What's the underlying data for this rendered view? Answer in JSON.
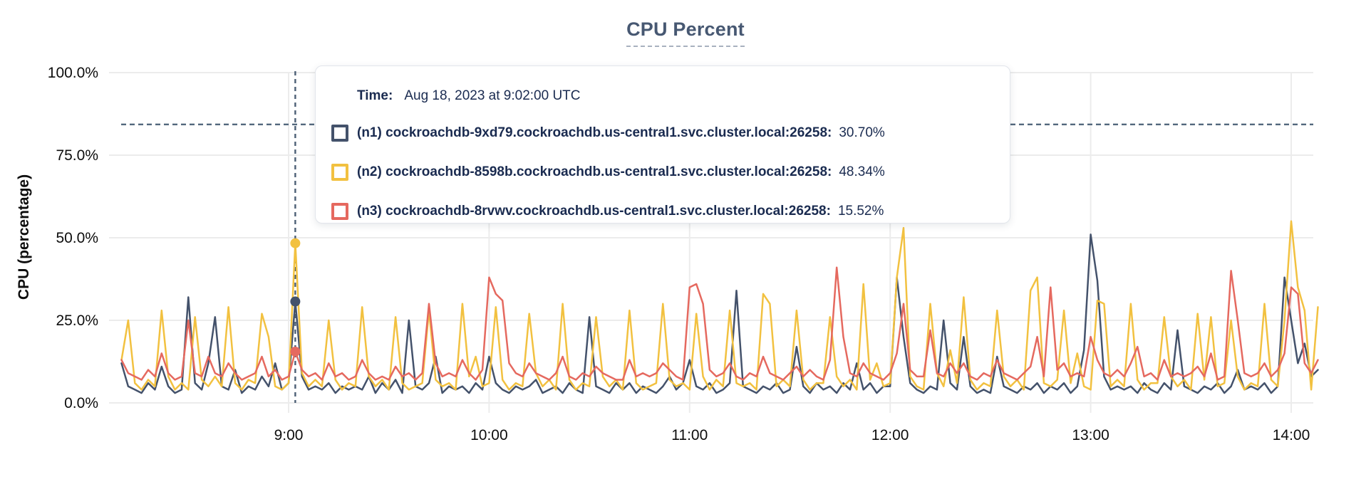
{
  "header": {
    "title": "CPU Percent"
  },
  "colors": {
    "series_n1": "#44526b",
    "series_n2": "#f2c140",
    "series_n3": "#e5695f",
    "title_text": "#475872",
    "tooltip_text": "#1a2b50",
    "gridline": "#ececec",
    "threshold_line": "#53687d",
    "crosshair_line": "#4c5f75",
    "tick_text": "#0d0d0d"
  },
  "tooltip": {
    "time_label": "Time:",
    "time_value": "Aug 18, 2023 at 9:02:00 UTC",
    "rows": [
      {
        "label": "(n1) cockroachdb-9xd79.cockroachdb.us-central1.svc.cluster.local:26258:",
        "value": "30.70%",
        "color": "#44526b"
      },
      {
        "label": "(n2) cockroachdb-8598b.cockroachdb.us-central1.svc.cluster.local:26258:",
        "value": "48.34%",
        "color": "#f2c140"
      },
      {
        "label": "(n3) cockroachdb-8rvwv.cockroachdb.us-central1.svc.cluster.local:26258:",
        "value": "15.52%",
        "color": "#e5695f"
      }
    ]
  },
  "chart_data": {
    "type": "line",
    "title": "CPU Percent",
    "xlabel": "",
    "ylabel": "CPU (percentage)",
    "ylim": [
      0,
      100
    ],
    "grid": true,
    "y_ticks": [
      {
        "value": 0,
        "label": "0.0%"
      },
      {
        "value": 25,
        "label": "25.0%"
      },
      {
        "value": 50,
        "label": "50.0%"
      },
      {
        "value": 75,
        "label": "75.0%"
      },
      {
        "value": 100,
        "label": "100.0%"
      }
    ],
    "x_ticks": [
      {
        "minute": 540,
        "label": "9:00"
      },
      {
        "minute": 600,
        "label": "10:00"
      },
      {
        "minute": 660,
        "label": "11:00"
      },
      {
        "minute": 720,
        "label": "12:00"
      },
      {
        "minute": 780,
        "label": "13:00"
      },
      {
        "minute": 840,
        "label": "14:00"
      }
    ],
    "x_start_minute": 490,
    "x_step_minutes": 2,
    "threshold_percent": 84.3,
    "crosshair": {
      "minute": 542,
      "time_text": "Aug 18, 2023 at 9:02:00 UTC",
      "values": {
        "n1": 30.7,
        "n2": 48.34,
        "n3": 15.52
      }
    },
    "series": [
      {
        "name": "(n1) cockroachdb-9xd79.cockroachdb.us-central1.svc.cluster.local:26258",
        "color": "#44526b",
        "crosshair_value": 30.7,
        "values": [
          12,
          5,
          4,
          3,
          6,
          4,
          11,
          5,
          3,
          4,
          32,
          6,
          4,
          12,
          26,
          5,
          4,
          10,
          3,
          5,
          4,
          8,
          5,
          12,
          4,
          6,
          30.7,
          8,
          4,
          5,
          4,
          6,
          3,
          5,
          4,
          5,
          4,
          8,
          3,
          6,
          4,
          7,
          3,
          25,
          5,
          4,
          6,
          14,
          3,
          5,
          4,
          5,
          3,
          6,
          4,
          14,
          6,
          4,
          3,
          5,
          4,
          5,
          7,
          3,
          4,
          5,
          3,
          6,
          4,
          3,
          26,
          5,
          4,
          3,
          6,
          4,
          6,
          3,
          5,
          4,
          3,
          5,
          8,
          4,
          6,
          13,
          5,
          4,
          6,
          3,
          4,
          6,
          34,
          5,
          4,
          3,
          5,
          4,
          6,
          3,
          4,
          17,
          5,
          3,
          6,
          4,
          5,
          3,
          6,
          4,
          12,
          4,
          6,
          3,
          5,
          5,
          38,
          20,
          6,
          4,
          3,
          5,
          4,
          25,
          6,
          4,
          20,
          5,
          3,
          4,
          3,
          14,
          5,
          4,
          3,
          5,
          4,
          6,
          3,
          5,
          4,
          6,
          3,
          5,
          16,
          51,
          37,
          8,
          4,
          5,
          4,
          5,
          3,
          6,
          4,
          3,
          6,
          4,
          22,
          5,
          4,
          3,
          5,
          4,
          6,
          3,
          5,
          10,
          4,
          5,
          4,
          6,
          3,
          5,
          38,
          25,
          12,
          18,
          8,
          10
        ]
      },
      {
        "name": "(n2) cockroachdb-8598b.cockroachdb.us-central1.svc.cluster.local:26258",
        "color": "#f2c140",
        "crosshair_value": 48.34,
        "values": [
          13,
          25,
          6,
          4,
          7,
          5,
          28,
          8,
          4,
          6,
          4,
          26,
          7,
          5,
          8,
          5,
          29,
          6,
          4,
          7,
          6,
          27,
          20,
          5,
          4,
          6,
          48.34,
          9,
          5,
          7,
          5,
          25,
          7,
          4,
          6,
          5,
          29,
          8,
          5,
          7,
          4,
          26,
          6,
          4,
          5,
          6,
          28,
          7,
          5,
          6,
          4,
          30,
          8,
          14,
          5,
          6,
          29,
          7,
          4,
          6,
          5,
          27,
          9,
          5,
          7,
          4,
          30,
          7,
          4,
          6,
          5,
          26,
          8,
          5,
          7,
          4,
          28,
          6,
          4,
          5,
          6,
          30,
          7,
          5,
          6,
          4,
          27,
          8,
          4,
          7,
          5,
          28,
          6,
          5,
          6,
          4,
          33,
          30,
          5,
          7,
          5,
          28,
          7,
          4,
          6,
          6,
          26,
          8,
          5,
          7,
          4,
          36,
          7,
          12,
          5,
          6,
          38,
          53,
          8,
          5,
          4,
          30,
          9,
          5,
          16,
          6,
          32,
          7,
          4,
          6,
          5,
          28,
          8,
          5,
          7,
          4,
          34,
          38,
          6,
          5,
          7,
          28,
          6,
          15,
          5,
          4,
          31,
          30,
          5,
          7,
          5,
          30,
          7,
          4,
          6,
          6,
          26,
          8,
          5,
          7,
          4,
          27,
          7,
          26,
          5,
          6,
          25,
          8,
          4,
          6,
          5,
          30,
          7,
          5,
          25,
          55,
          35,
          28,
          4,
          29
        ]
      },
      {
        "name": "(n3) cockroachdb-8rvwv.cockroachdb.us-central1.svc.cluster.local:26258",
        "color": "#e5695f",
        "crosshair_value": 15.52,
        "values": [
          13,
          9,
          8,
          7,
          10,
          8,
          15,
          9,
          7,
          8,
          25,
          9,
          8,
          14,
          9,
          8,
          12,
          9,
          7,
          8,
          9,
          14,
          8,
          10,
          7,
          8,
          15.52,
          10,
          8,
          9,
          7,
          12,
          8,
          9,
          7,
          8,
          13,
          9,
          7,
          8,
          7,
          11,
          8,
          9,
          7,
          9,
          30,
          12,
          8,
          9,
          8,
          13,
          9,
          7,
          10,
          38,
          33,
          31,
          12,
          9,
          8,
          12,
          9,
          8,
          7,
          9,
          14,
          8,
          7,
          9,
          8,
          11,
          9,
          8,
          7,
          7,
          13,
          8,
          9,
          8,
          9,
          12,
          10,
          8,
          7,
          35,
          36,
          30,
          10,
          8,
          9,
          12,
          8,
          7,
          9,
          8,
          14,
          9,
          8,
          7,
          9,
          11,
          8,
          10,
          8,
          7,
          13,
          41,
          20,
          9,
          8,
          12,
          9,
          8,
          7,
          9,
          15,
          30,
          10,
          8,
          8,
          22,
          9,
          8,
          12,
          9,
          12,
          8,
          7,
          9,
          8,
          13,
          9,
          8,
          7,
          9,
          11,
          20,
          8,
          35,
          10,
          12,
          8,
          9,
          8,
          20,
          13,
          9,
          8,
          10,
          8,
          12,
          17,
          8,
          9,
          7,
          13,
          8,
          9,
          8,
          9,
          11,
          8,
          15,
          7,
          8,
          40,
          25,
          9,
          8,
          9,
          12,
          8,
          10,
          15,
          35,
          33,
          12,
          9,
          13
        ]
      }
    ]
  }
}
